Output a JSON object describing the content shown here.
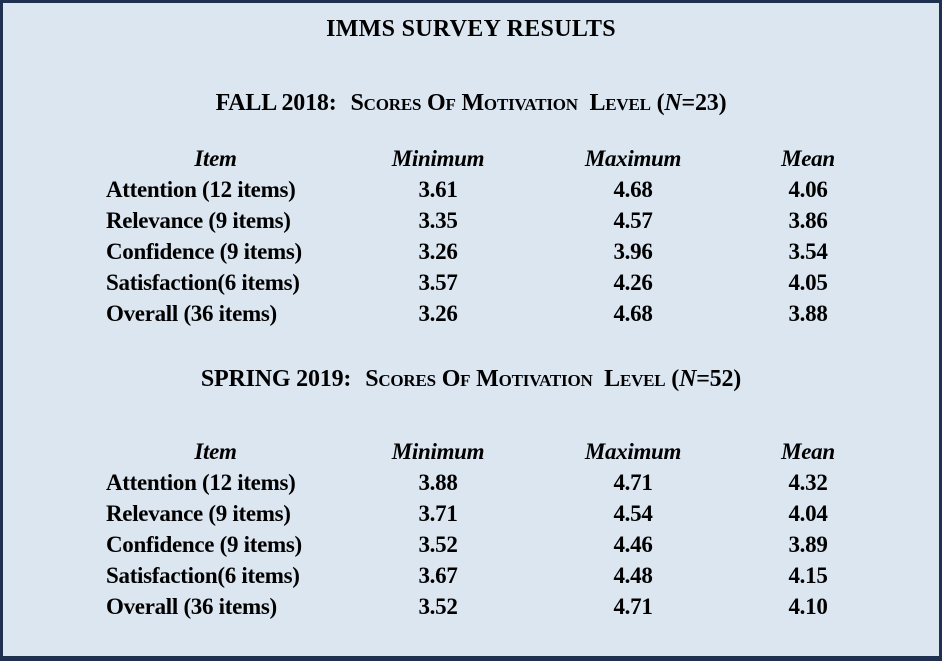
{
  "page": {
    "background_color": "#dce6f1",
    "border_color": "#20314f",
    "text_color": "#000000"
  },
  "title": "IMMS SURVEY RESULTS",
  "tables": [
    {
      "heading": {
        "term": "FALL 2018:",
        "subtitle": "Scores Of Motivation  Level",
        "n_open": "(",
        "n_symbol": "N",
        "n_rest": "=23)"
      },
      "columns": [
        "Item",
        "Minimum",
        "Maximum",
        "Mean"
      ],
      "rows": [
        {
          "item": "Attention (12 items)",
          "min": "3.61",
          "max": "4.68",
          "mean": "4.06"
        },
        {
          "item": "Relevance (9 items)",
          "min": "3.35",
          "max": "4.57",
          "mean": "3.86"
        },
        {
          "item": "Confidence (9 items)",
          "min": "3.26",
          "max": "3.96",
          "mean": "3.54"
        },
        {
          "item": "Satisfaction(6 items)",
          "min": "3.57",
          "max": "4.26",
          "mean": "4.05"
        },
        {
          "item": "Overall (36 items)",
          "min": "3.26",
          "max": "4.68",
          "mean": "3.88"
        }
      ]
    },
    {
      "heading": {
        "term": "SPRING 2019:",
        "subtitle": "Scores Of Motivation  Level",
        "n_open": "(",
        "n_symbol": "N",
        "n_rest": "=52)"
      },
      "columns": [
        "Item",
        "Minimum",
        "Maximum",
        "Mean"
      ],
      "rows": [
        {
          "item": "Attention (12 items)",
          "min": "3.88",
          "max": "4.71",
          "mean": "4.32"
        },
        {
          "item": "Relevance (9 items)",
          "min": "3.71",
          "max": "4.54",
          "mean": "4.04"
        },
        {
          "item": "Confidence (9 items)",
          "min": "3.52",
          "max": "4.46",
          "mean": "3.89"
        },
        {
          "item": "Satisfaction(6 items)",
          "min": "3.67",
          "max": "4.48",
          "mean": "4.15"
        },
        {
          "item": "Overall (36 items)",
          "min": "3.52",
          "max": "4.71",
          "mean": "4.10"
        }
      ]
    }
  ]
}
